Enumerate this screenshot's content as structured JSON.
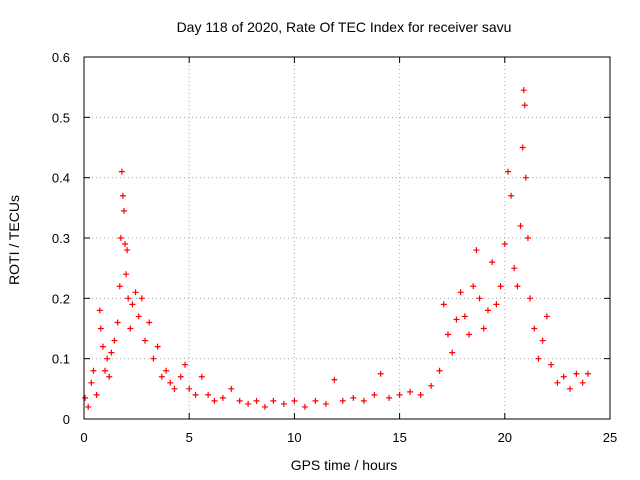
{
  "chart_data": {
    "type": "scatter",
    "title": "Day 118 of 2020, Rate Of TEC Index for receiver savu",
    "xlabel": "GPS time / hours",
    "ylabel": "ROTI / TECUs",
    "xlim": [
      0,
      25
    ],
    "ylim": [
      0,
      0.6
    ],
    "x_ticks": [
      0,
      5,
      10,
      15,
      20,
      25
    ],
    "x_tick_labels": [
      "0",
      "5",
      "10",
      "15",
      "20",
      "25"
    ],
    "y_ticks": [
      0,
      0.1,
      0.2,
      0.3,
      0.4,
      0.5,
      0.6
    ],
    "y_tick_labels": [
      "0",
      "0.1",
      "0.2",
      "0.3",
      "0.4",
      "0.5",
      "0.6"
    ],
    "grid": true,
    "marker": "+",
    "color": "#ff0000",
    "series": [
      {
        "points": [
          {
            "x": 0.05,
            "y": 0.035
          },
          {
            "x": 0.2,
            "y": 0.02
          },
          {
            "x": 0.35,
            "y": 0.06
          },
          {
            "x": 0.45,
            "y": 0.08
          },
          {
            "x": 0.6,
            "y": 0.04
          },
          {
            "x": 0.75,
            "y": 0.18
          },
          {
            "x": 0.8,
            "y": 0.15
          },
          {
            "x": 0.9,
            "y": 0.12
          },
          {
            "x": 1.0,
            "y": 0.08
          },
          {
            "x": 1.1,
            "y": 0.1
          },
          {
            "x": 1.2,
            "y": 0.07
          },
          {
            "x": 1.3,
            "y": 0.11
          },
          {
            "x": 1.45,
            "y": 0.13
          },
          {
            "x": 1.6,
            "y": 0.16
          },
          {
            "x": 1.7,
            "y": 0.22
          },
          {
            "x": 1.75,
            "y": 0.3
          },
          {
            "x": 1.8,
            "y": 0.41
          },
          {
            "x": 1.85,
            "y": 0.37
          },
          {
            "x": 1.9,
            "y": 0.345
          },
          {
            "x": 1.95,
            "y": 0.29
          },
          {
            "x": 2.0,
            "y": 0.24
          },
          {
            "x": 2.05,
            "y": 0.28
          },
          {
            "x": 2.1,
            "y": 0.2
          },
          {
            "x": 2.2,
            "y": 0.15
          },
          {
            "x": 2.3,
            "y": 0.19
          },
          {
            "x": 2.45,
            "y": 0.21
          },
          {
            "x": 2.6,
            "y": 0.17
          },
          {
            "x": 2.75,
            "y": 0.2
          },
          {
            "x": 2.9,
            "y": 0.13
          },
          {
            "x": 3.1,
            "y": 0.16
          },
          {
            "x": 3.3,
            "y": 0.1
          },
          {
            "x": 3.5,
            "y": 0.12
          },
          {
            "x": 3.7,
            "y": 0.07
          },
          {
            "x": 3.9,
            "y": 0.08
          },
          {
            "x": 4.1,
            "y": 0.06
          },
          {
            "x": 4.3,
            "y": 0.05
          },
          {
            "x": 4.6,
            "y": 0.07
          },
          {
            "x": 4.8,
            "y": 0.09
          },
          {
            "x": 5.0,
            "y": 0.05
          },
          {
            "x": 5.3,
            "y": 0.04
          },
          {
            "x": 5.6,
            "y": 0.07
          },
          {
            "x": 5.9,
            "y": 0.04
          },
          {
            "x": 6.2,
            "y": 0.03
          },
          {
            "x": 6.6,
            "y": 0.035
          },
          {
            "x": 7.0,
            "y": 0.05
          },
          {
            "x": 7.4,
            "y": 0.03
          },
          {
            "x": 7.8,
            "y": 0.025
          },
          {
            "x": 8.2,
            "y": 0.03
          },
          {
            "x": 8.6,
            "y": 0.02
          },
          {
            "x": 9.0,
            "y": 0.03
          },
          {
            "x": 9.5,
            "y": 0.025
          },
          {
            "x": 10.0,
            "y": 0.03
          },
          {
            "x": 10.5,
            "y": 0.02
          },
          {
            "x": 11.0,
            "y": 0.03
          },
          {
            "x": 11.5,
            "y": 0.025
          },
          {
            "x": 11.9,
            "y": 0.065
          },
          {
            "x": 12.3,
            "y": 0.03
          },
          {
            "x": 12.8,
            "y": 0.035
          },
          {
            "x": 13.3,
            "y": 0.03
          },
          {
            "x": 13.8,
            "y": 0.04
          },
          {
            "x": 14.1,
            "y": 0.075
          },
          {
            "x": 14.5,
            "y": 0.035
          },
          {
            "x": 15.0,
            "y": 0.04
          },
          {
            "x": 15.5,
            "y": 0.045
          },
          {
            "x": 16.0,
            "y": 0.04
          },
          {
            "x": 16.5,
            "y": 0.055
          },
          {
            "x": 16.9,
            "y": 0.08
          },
          {
            "x": 17.1,
            "y": 0.19
          },
          {
            "x": 17.3,
            "y": 0.14
          },
          {
            "x": 17.5,
            "y": 0.11
          },
          {
            "x": 17.7,
            "y": 0.165
          },
          {
            "x": 17.9,
            "y": 0.21
          },
          {
            "x": 18.1,
            "y": 0.17
          },
          {
            "x": 18.3,
            "y": 0.14
          },
          {
            "x": 18.5,
            "y": 0.22
          },
          {
            "x": 18.65,
            "y": 0.28
          },
          {
            "x": 18.8,
            "y": 0.2
          },
          {
            "x": 19.0,
            "y": 0.15
          },
          {
            "x": 19.2,
            "y": 0.18
          },
          {
            "x": 19.4,
            "y": 0.26
          },
          {
            "x": 19.6,
            "y": 0.19
          },
          {
            "x": 19.8,
            "y": 0.22
          },
          {
            "x": 20.0,
            "y": 0.29
          },
          {
            "x": 20.15,
            "y": 0.41
          },
          {
            "x": 20.3,
            "y": 0.37
          },
          {
            "x": 20.45,
            "y": 0.25
          },
          {
            "x": 20.6,
            "y": 0.22
          },
          {
            "x": 20.75,
            "y": 0.32
          },
          {
            "x": 20.85,
            "y": 0.45
          },
          {
            "x": 20.9,
            "y": 0.545
          },
          {
            "x": 20.95,
            "y": 0.52
          },
          {
            "x": 21.0,
            "y": 0.4
          },
          {
            "x": 21.1,
            "y": 0.3
          },
          {
            "x": 21.2,
            "y": 0.2
          },
          {
            "x": 21.4,
            "y": 0.15
          },
          {
            "x": 21.6,
            "y": 0.1
          },
          {
            "x": 21.8,
            "y": 0.13
          },
          {
            "x": 22.0,
            "y": 0.17
          },
          {
            "x": 22.2,
            "y": 0.09
          },
          {
            "x": 22.5,
            "y": 0.06
          },
          {
            "x": 22.8,
            "y": 0.07
          },
          {
            "x": 23.1,
            "y": 0.05
          },
          {
            "x": 23.4,
            "y": 0.075
          },
          {
            "x": 23.7,
            "y": 0.06
          },
          {
            "x": 23.95,
            "y": 0.075
          }
        ]
      }
    ]
  }
}
